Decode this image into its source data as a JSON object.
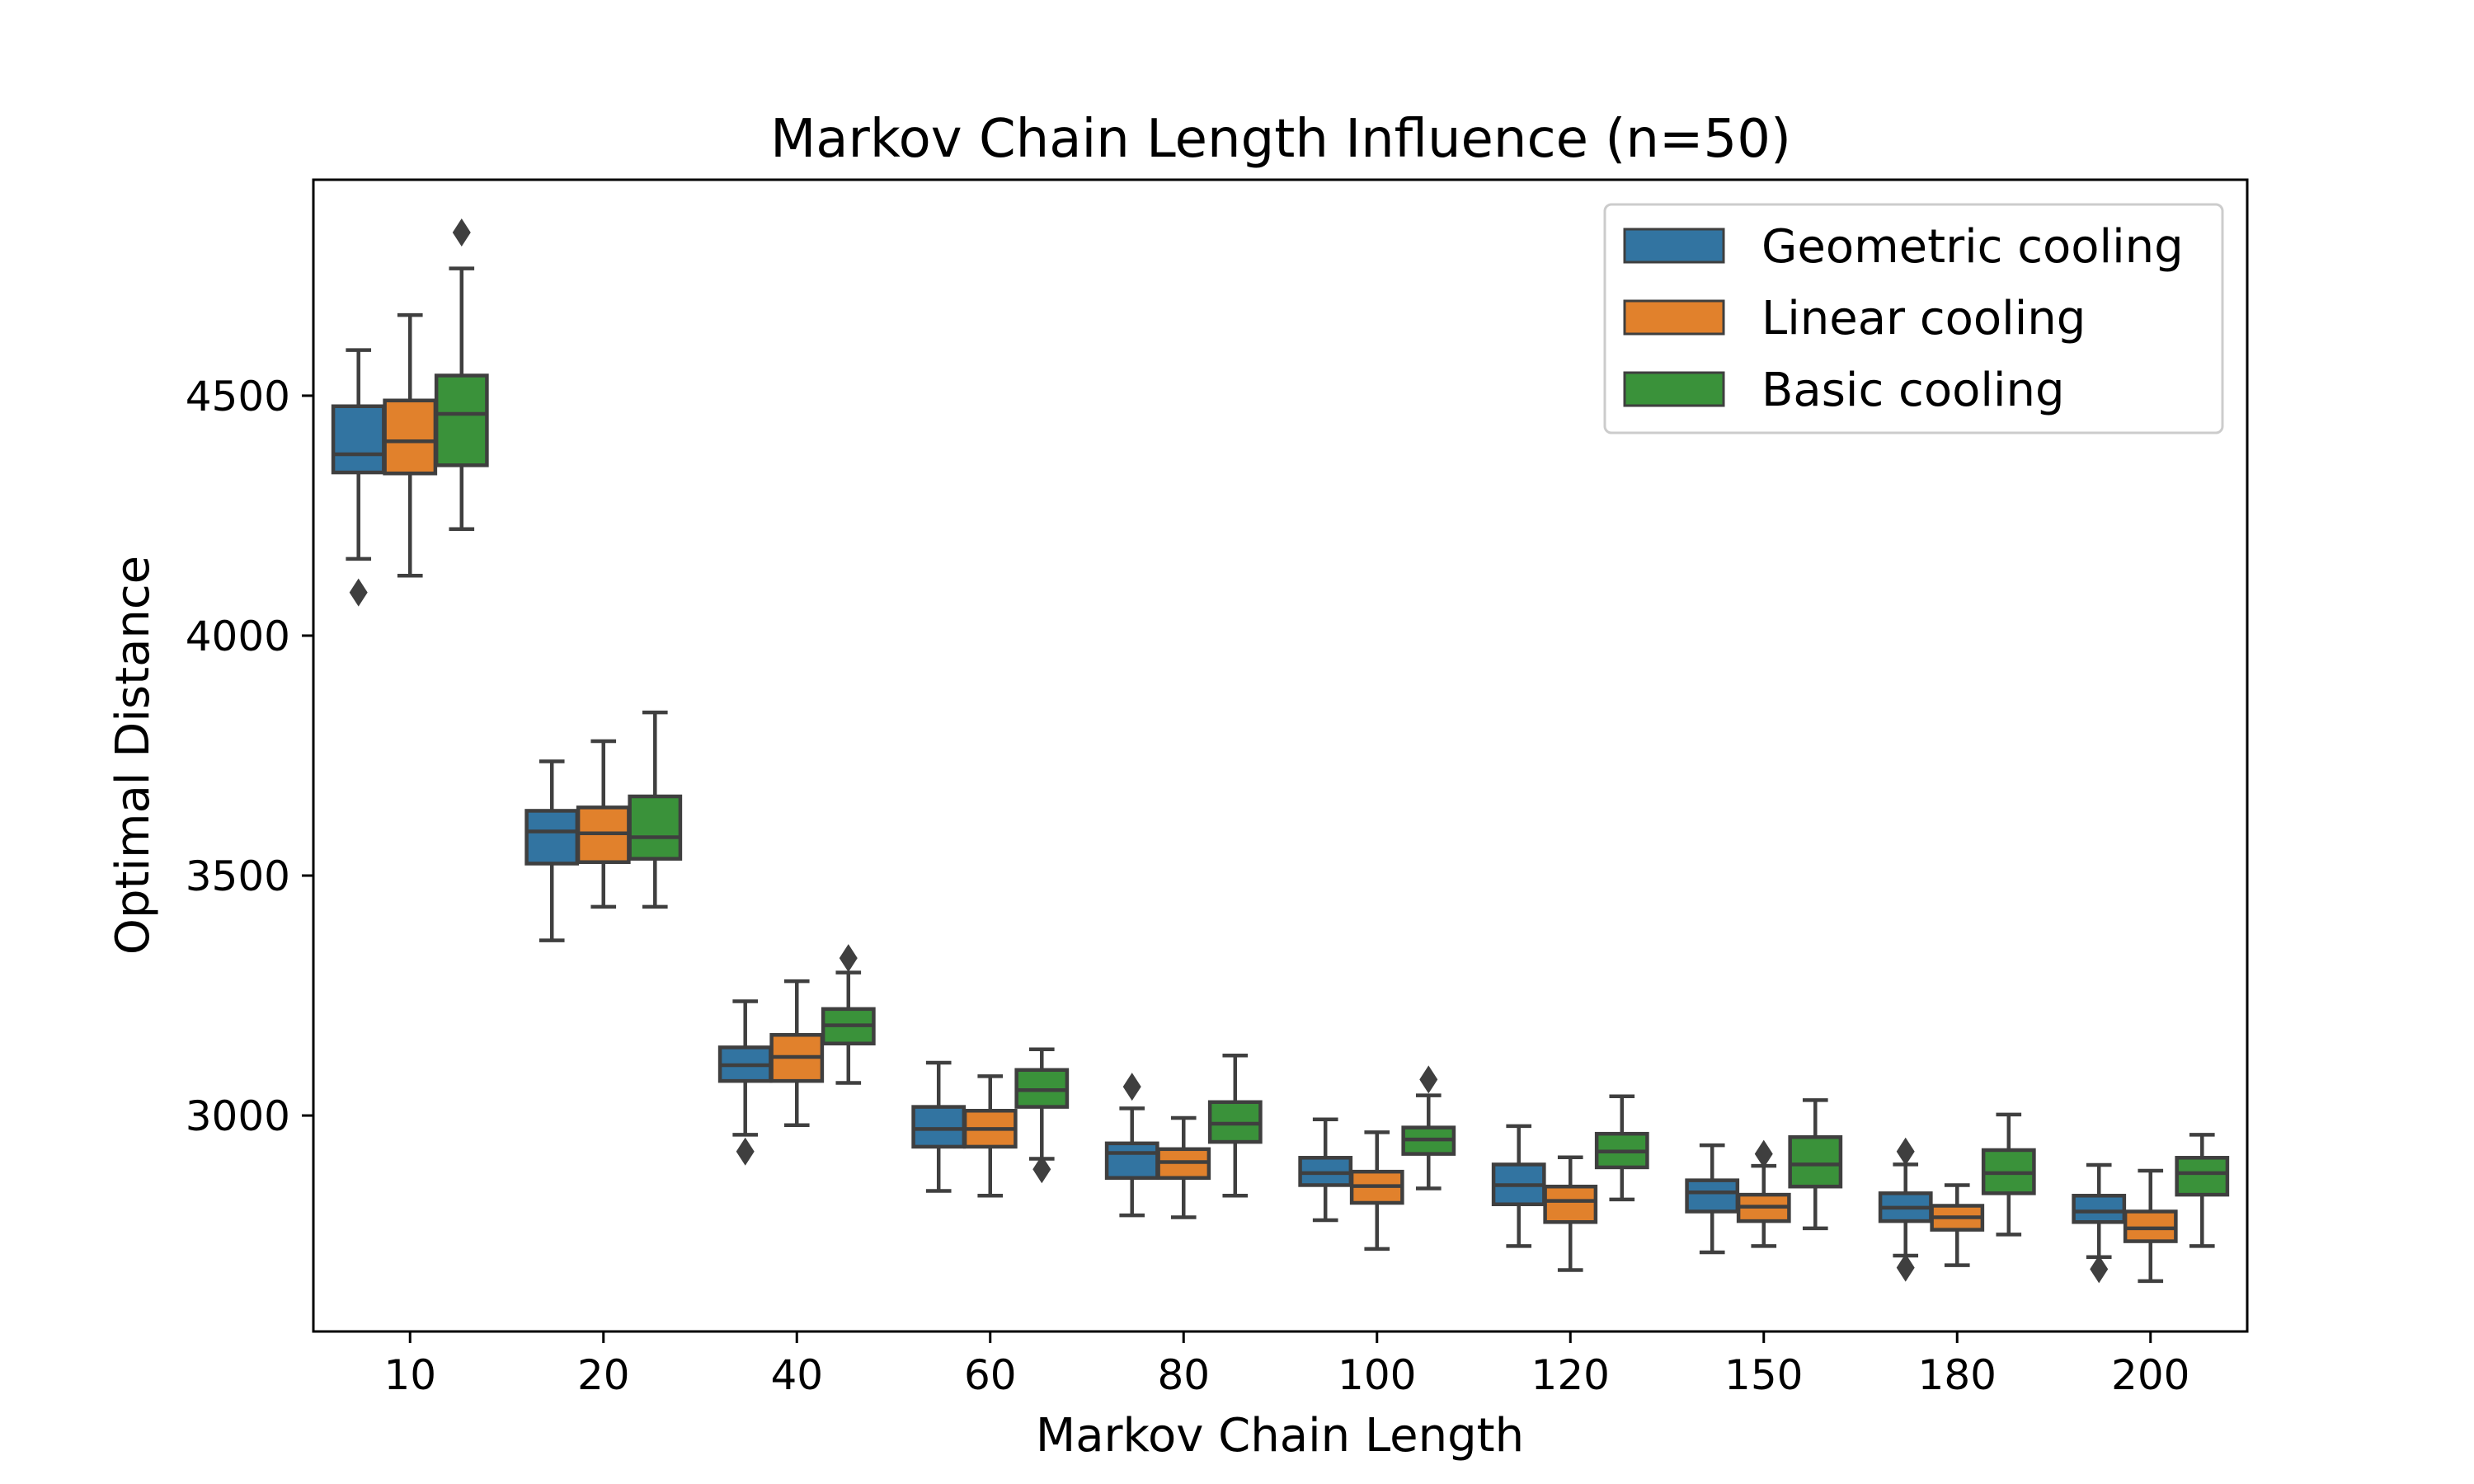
{
  "chart_data": {
    "type": "box",
    "title": "Markov Chain Length Influence (n=50)",
    "xlabel": "Markov Chain Length",
    "ylabel": "Optimal Distance",
    "categories": [
      "10",
      "20",
      "40",
      "60",
      "80",
      "100",
      "120",
      "150",
      "180",
      "200"
    ],
    "ylim": [
      2550,
      4950
    ],
    "yticks": [
      3000,
      3500,
      4000,
      4500
    ],
    "legend_position": "top-right",
    "grid": false,
    "series": [
      {
        "name": "Geometric cooling",
        "color": "#3274a1",
        "boxes": [
          {
            "whislo": 4160,
            "q1": 4340,
            "med": 4378,
            "q3": 4478,
            "whishi": 4595,
            "outliers": [
              4090
            ]
          },
          {
            "whislo": 3365,
            "q1": 3525,
            "med": 3592,
            "q3": 3635,
            "whishi": 3738,
            "outliers": []
          },
          {
            "whislo": 2960,
            "q1": 3072,
            "med": 3105,
            "q3": 3142,
            "whishi": 3238,
            "outliers": [
              2925
            ]
          },
          {
            "whislo": 2843,
            "q1": 2935,
            "med": 2972,
            "q3": 3018,
            "whishi": 3110,
            "outliers": []
          },
          {
            "whislo": 2792,
            "q1": 2870,
            "med": 2922,
            "q3": 2942,
            "whishi": 3015,
            "outliers": [
              3060
            ]
          },
          {
            "whislo": 2782,
            "q1": 2855,
            "med": 2880,
            "q3": 2912,
            "whishi": 2992,
            "outliers": []
          },
          {
            "whislo": 2728,
            "q1": 2815,
            "med": 2855,
            "q3": 2898,
            "whishi": 2978,
            "outliers": []
          },
          {
            "whislo": 2715,
            "q1": 2800,
            "med": 2840,
            "q3": 2865,
            "whishi": 2938,
            "outliers": []
          },
          {
            "whislo": 2708,
            "q1": 2780,
            "med": 2808,
            "q3": 2838,
            "whishi": 2898,
            "outliers": [
              2683,
              2925
            ]
          },
          {
            "whislo": 2705,
            "q1": 2778,
            "med": 2800,
            "q3": 2833,
            "whishi": 2897,
            "outliers": [
              2680
            ]
          }
        ]
      },
      {
        "name": "Linear cooling",
        "color": "#e1812c",
        "boxes": [
          {
            "whislo": 4125,
            "q1": 4338,
            "med": 4405,
            "q3": 4490,
            "whishi": 4668,
            "outliers": []
          },
          {
            "whislo": 3435,
            "q1": 3528,
            "med": 3588,
            "q3": 3642,
            "whishi": 3780,
            "outliers": []
          },
          {
            "whislo": 2980,
            "q1": 3072,
            "med": 3122,
            "q3": 3168,
            "whishi": 3280,
            "outliers": []
          },
          {
            "whislo": 2833,
            "q1": 2935,
            "med": 2972,
            "q3": 3010,
            "whishi": 3082,
            "outliers": []
          },
          {
            "whislo": 2788,
            "q1": 2870,
            "med": 2903,
            "q3": 2930,
            "whishi": 2995,
            "outliers": []
          },
          {
            "whislo": 2722,
            "q1": 2818,
            "med": 2853,
            "q3": 2883,
            "whishi": 2965,
            "outliers": []
          },
          {
            "whislo": 2678,
            "q1": 2778,
            "med": 2822,
            "q3": 2852,
            "whishi": 2913,
            "outliers": []
          },
          {
            "whislo": 2728,
            "q1": 2780,
            "med": 2810,
            "q3": 2835,
            "whishi": 2895,
            "outliers": [
              2920
            ]
          },
          {
            "whislo": 2688,
            "q1": 2762,
            "med": 2788,
            "q3": 2812,
            "whishi": 2855,
            "outliers": []
          },
          {
            "whislo": 2655,
            "q1": 2738,
            "med": 2765,
            "q3": 2800,
            "whishi": 2885,
            "outliers": []
          }
        ]
      },
      {
        "name": "Basic cooling",
        "color": "#3a923a",
        "boxes": [
          {
            "whislo": 4222,
            "q1": 4355,
            "med": 4462,
            "q3": 4542,
            "whishi": 4765,
            "outliers": [
              4840
            ]
          },
          {
            "whislo": 3435,
            "q1": 3535,
            "med": 3580,
            "q3": 3665,
            "whishi": 3840,
            "outliers": []
          },
          {
            "whislo": 3068,
            "q1": 3150,
            "med": 3188,
            "q3": 3222,
            "whishi": 3298,
            "outliers": [
              3328
            ]
          },
          {
            "whislo": 2910,
            "q1": 3018,
            "med": 3053,
            "q3": 3095,
            "whishi": 3138,
            "outliers": [
              2888
            ]
          },
          {
            "whislo": 2833,
            "q1": 2945,
            "med": 2983,
            "q3": 3028,
            "whishi": 3125,
            "outliers": []
          },
          {
            "whislo": 2848,
            "q1": 2920,
            "med": 2950,
            "q3": 2975,
            "whishi": 3042,
            "outliers": [
              3075
            ]
          },
          {
            "whislo": 2825,
            "q1": 2892,
            "med": 2925,
            "q3": 2962,
            "whishi": 3040,
            "outliers": []
          },
          {
            "whislo": 2765,
            "q1": 2852,
            "med": 2898,
            "q3": 2955,
            "whishi": 3032,
            "outliers": []
          },
          {
            "whislo": 2752,
            "q1": 2838,
            "med": 2880,
            "q3": 2928,
            "whishi": 3002,
            "outliers": []
          },
          {
            "whislo": 2728,
            "q1": 2835,
            "med": 2880,
            "q3": 2912,
            "whishi": 2960,
            "outliers": []
          }
        ]
      }
    ]
  }
}
